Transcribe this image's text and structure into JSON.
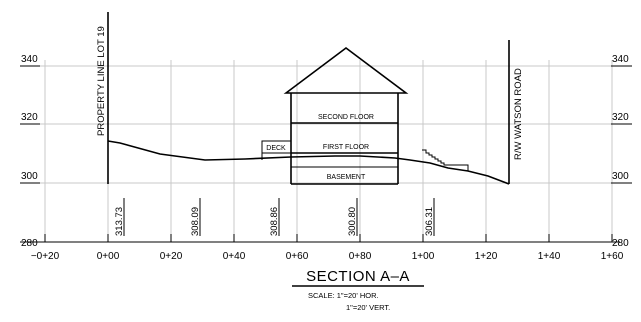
{
  "drawing_title": "SECTION A–A",
  "scale": {
    "horizontal": "SCALE:  1\"=20' HOR.",
    "vertical": "1\"=20' VERT."
  },
  "elevations": {
    "left": [
      "340",
      "320",
      "300",
      "280"
    ],
    "right": [
      "340",
      "320",
      "300",
      "280"
    ]
  },
  "stations": [
    "−0+20",
    "0+00",
    "0+20",
    "0+40",
    "0+60",
    "0+80",
    "1+00",
    "1+20",
    "1+40",
    "1+60"
  ],
  "boundary_labels": {
    "property_line": "PROPERTY LINE LOT 19",
    "right_of_way": "R/W WATSON ROAD"
  },
  "ground_elevations": [
    "313.73",
    "308.09",
    "308.86",
    "300.80",
    "306.31"
  ],
  "house_labels": {
    "second_floor": "SECOND FLOOR",
    "first_floor": "FIRST FLOOR",
    "basement": "BASEMENT",
    "deck": "DECK"
  }
}
